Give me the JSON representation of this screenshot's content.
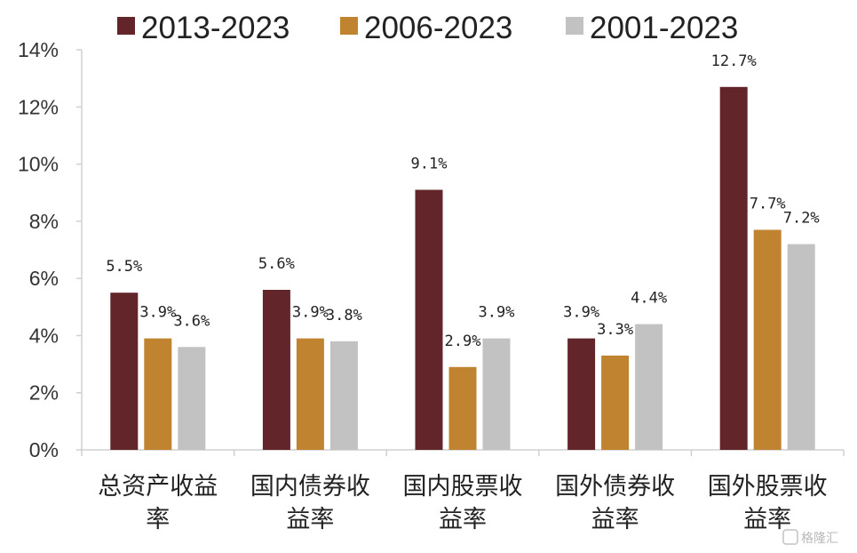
{
  "chart_data": {
    "type": "bar",
    "categories": [
      "总资产收益率",
      "国内债券收益率",
      "国内股票收益率",
      "国外债券收益率",
      "国外股票收益率"
    ],
    "category_lines": [
      [
        "总资产收益",
        "率"
      ],
      [
        "国内债券收",
        "益率"
      ],
      [
        "国内股票收",
        "益率"
      ],
      [
        "国外债券收",
        "益率"
      ],
      [
        "国外股票收",
        "益率"
      ]
    ],
    "series": [
      {
        "name": "2013-2023",
        "color": "#62252A",
        "values": [
          5.5,
          5.6,
          9.1,
          3.9,
          12.7
        ],
        "labels": [
          "5.5%",
          "5.6%",
          "9.1%",
          "3.9%",
          "12.7%"
        ]
      },
      {
        "name": "2006-2023",
        "color": "#C0832F",
        "values": [
          3.9,
          3.9,
          2.9,
          3.3,
          7.7
        ],
        "labels": [
          "3.9%",
          "3.9%",
          "2.9%",
          "3.3%",
          "7.7%"
        ]
      },
      {
        "name": "2001-2023",
        "color": "#C2C2C2",
        "values": [
          3.6,
          3.8,
          3.9,
          4.4,
          7.2
        ],
        "labels": [
          "3.6%",
          "3.8%",
          "3.9%",
          "4.4%",
          "7.2%"
        ]
      }
    ],
    "y_ticks": [
      "0%",
      "2%",
      "4%",
      "6%",
      "8%",
      "10%",
      "12%",
      "14%"
    ],
    "ylim": [
      0,
      14
    ],
    "legend": "top",
    "grid": false
  },
  "watermark": "格隆汇"
}
